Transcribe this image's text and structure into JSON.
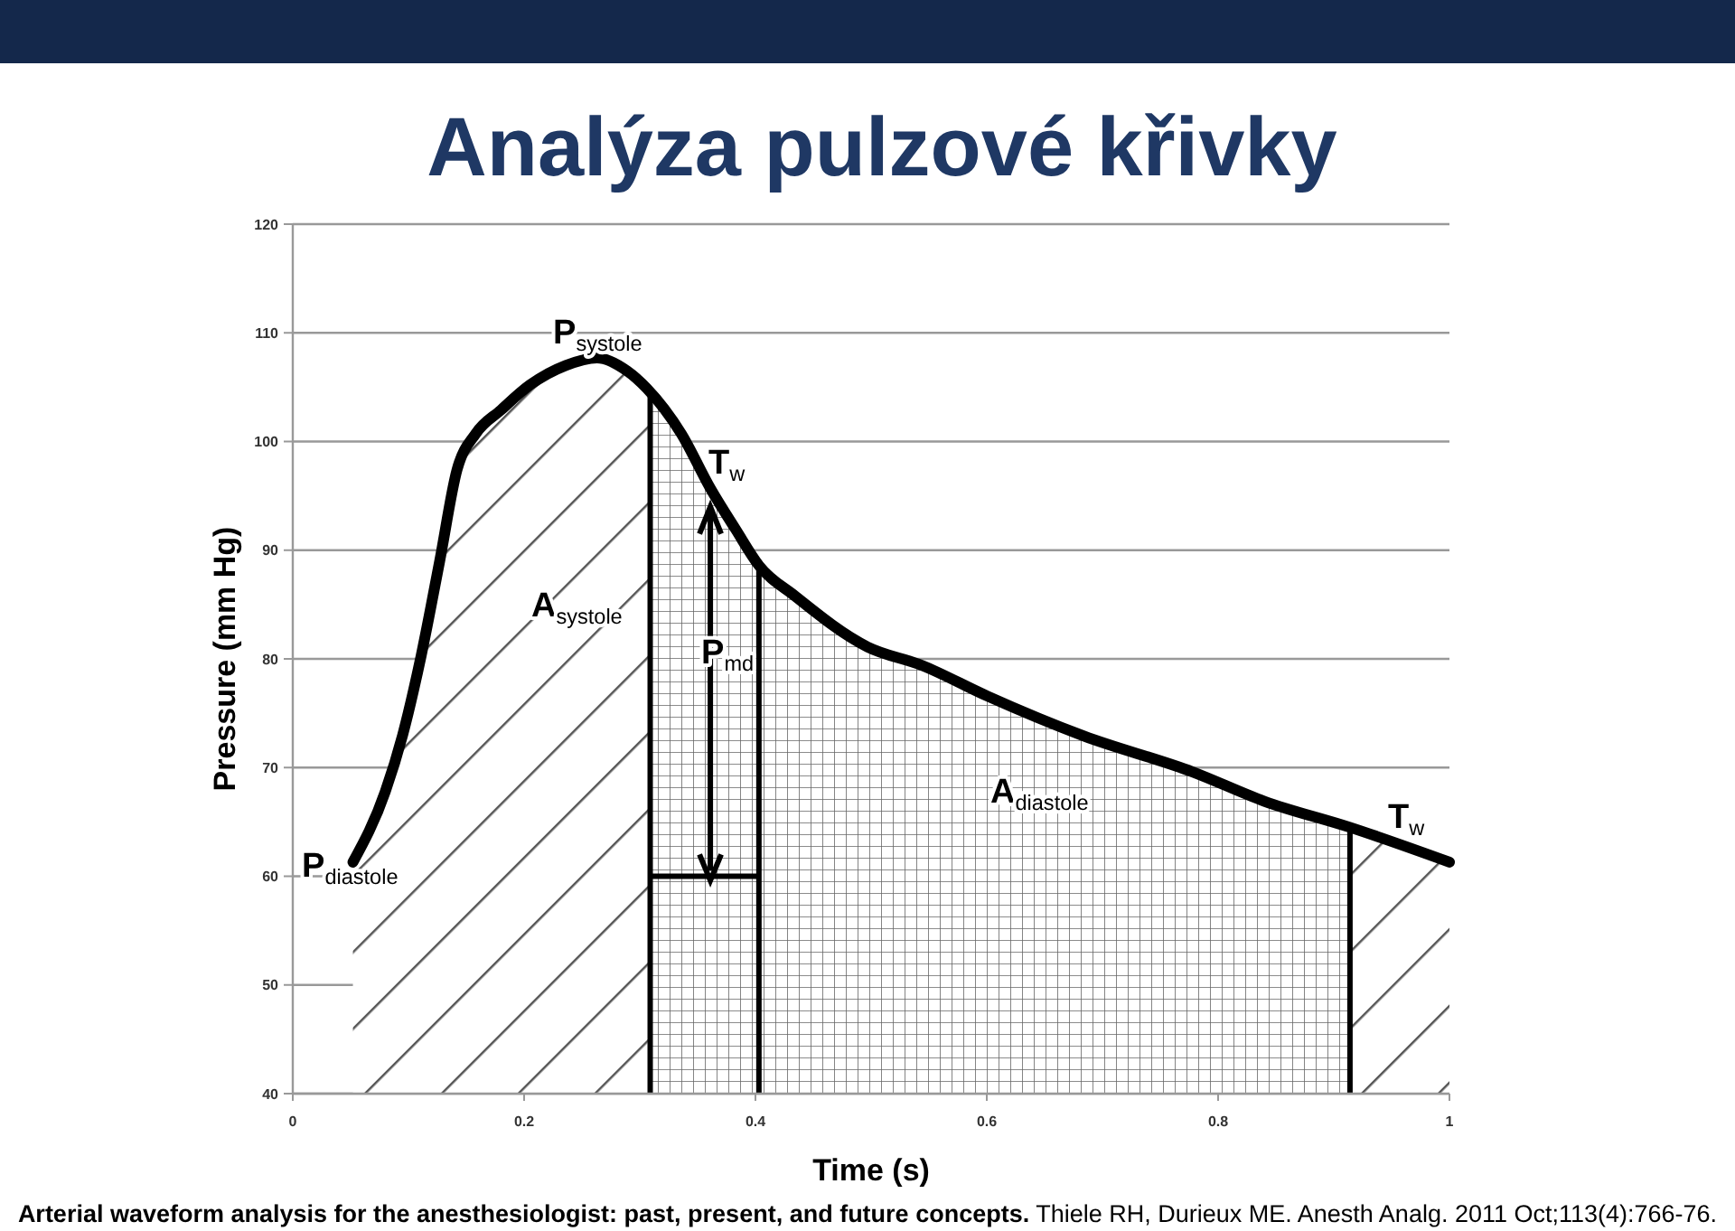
{
  "chart_data": {
    "type": "area",
    "title": "Analýza pulzové křivky",
    "xlabel": "Time (s)",
    "ylabel": "Pressure (mm Hg)",
    "x": [
      0.052,
      0.08,
      0.095,
      0.111,
      0.127,
      0.142,
      0.158,
      0.18,
      0.205,
      0.236,
      0.263,
      0.289,
      0.306,
      0.336,
      0.361,
      0.383,
      0.403,
      0.434,
      0.497,
      0.544,
      0.6,
      0.684,
      0.778,
      0.84,
      0.914,
      1.0
    ],
    "series": [
      {
        "color": "#000000",
        "values": [
          61.3,
          67.8,
          73,
          80.3,
          89,
          97.4,
          100.7,
          102.9,
          105.2,
          107,
          107.7,
          106.5,
          104.9,
          100.7,
          95.7,
          91.9,
          88.6,
          85.8,
          81.1,
          79.4,
          76.6,
          72.9,
          69.6,
          66.9,
          64.5,
          61.3
        ]
      },
      {
        "type": "line",
        "color": "#000000",
        "x": [
          0.309,
          0.403
        ],
        "values": [
          60,
          60
        ]
      }
    ],
    "xlim": [
      0,
      1
    ],
    "xticks": [
      0,
      0.2,
      0.4,
      0.6,
      0.8,
      1
    ],
    "ylim": [
      40,
      120
    ],
    "yticks": [
      40,
      50,
      60,
      70,
      80,
      90,
      100,
      110,
      120
    ],
    "grid": "y",
    "ref_lines": [
      {
        "axis": "x",
        "value": 0.309,
        "color": "#000000"
      },
      {
        "axis": "x",
        "value": 0.403,
        "color": "#000000"
      },
      {
        "axis": "x",
        "value": 0.914,
        "color": "#000000"
      }
    ],
    "annotations": [
      "P$_{systole}$",
      {
        "text": "T$_{w}$",
        "x": 0.361,
        "y": 95.7
      },
      "A$_{systole}$",
      "P$_{md}$",
      "P$_{diastole}$",
      "A$_{diastole}$",
      "T$_{w}$",
      "Arterial waveform analysis for the anesthesiologist: past, present, and future concepts.",
      "Thiele RH, Durieux ME. Anesth Analg. 2011 Oct;113(4):766-76."
    ]
  }
}
